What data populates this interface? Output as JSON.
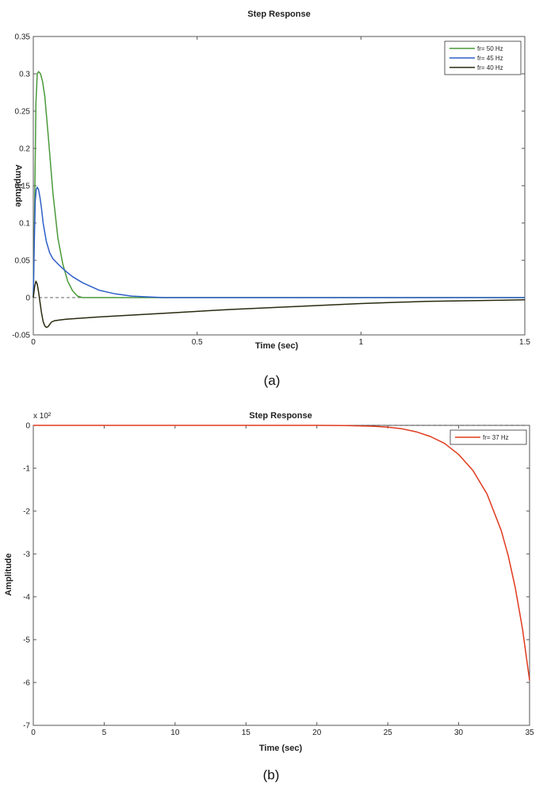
{
  "chart_data": [
    {
      "type": "line",
      "title": "Step Response",
      "xlabel": "Time (sec)",
      "ylabel": "Amplitude",
      "xlim": [
        0,
        1.5
      ],
      "ylim": [
        -0.05,
        0.35
      ],
      "xticks": [
        0,
        0.5,
        1,
        1.5
      ],
      "xtick_labels": [
        "0",
        "0.5",
        "1",
        "1.5"
      ],
      "yticks": [
        0.35,
        0.3,
        0.25,
        0.2,
        0.15,
        0.1,
        0.05,
        0,
        -0.05
      ],
      "ytick_labels": [
        "0.35",
        "0.3",
        "0.25",
        "0.2",
        "0.15",
        "0.1",
        "0.05",
        "0",
        "-0.05"
      ],
      "caption": "(a)",
      "legend_position": "top-right",
      "zero_line": true,
      "series": [
        {
          "name": "fr= 50 Hz",
          "color": "#4a9a3a",
          "x": [
            0,
            0.004,
            0.008,
            0.012,
            0.016,
            0.022,
            0.028,
            0.035,
            0.045,
            0.06,
            0.075,
            0.09,
            0.105,
            0.12,
            0.135,
            0.15,
            0.2,
            0.4,
            0.6,
            1.0,
            1.5
          ],
          "y": [
            0,
            0.12,
            0.26,
            0.3,
            0.303,
            0.3,
            0.29,
            0.27,
            0.22,
            0.14,
            0.08,
            0.045,
            0.022,
            0.009,
            0.002,
            0,
            0,
            0,
            0,
            0,
            0
          ]
        },
        {
          "name": "fr= 45 Hz",
          "color": "#2f5fc8",
          "x": [
            0,
            0.003,
            0.006,
            0.009,
            0.012,
            0.016,
            0.02,
            0.025,
            0.03,
            0.04,
            0.05,
            0.06,
            0.08,
            0.1,
            0.12,
            0.15,
            0.2,
            0.25,
            0.3,
            0.35,
            0.4,
            0.5,
            0.55,
            0.6,
            1.0,
            1.5
          ],
          "y": [
            0,
            0.07,
            0.13,
            0.145,
            0.148,
            0.145,
            0.135,
            0.12,
            0.1,
            0.075,
            0.06,
            0.052,
            0.043,
            0.035,
            0.028,
            0.02,
            0.01,
            0.005,
            0.002,
            0.001,
            0,
            0,
            0,
            0,
            0,
            0
          ]
        },
        {
          "name": "fr= 40 Hz",
          "color": "#2a2a10",
          "x": [
            0,
            0.004,
            0.008,
            0.012,
            0.016,
            0.02,
            0.025,
            0.03,
            0.035,
            0.04,
            0.045,
            0.05,
            0.055,
            0.065,
            0.08,
            0.1,
            0.2,
            0.4,
            0.6,
            0.8,
            1.0,
            1.2,
            1.5
          ],
          "y": [
            0,
            0.015,
            0.022,
            0.018,
            0.008,
            -0.005,
            -0.02,
            -0.032,
            -0.038,
            -0.04,
            -0.039,
            -0.036,
            -0.033,
            -0.031,
            -0.03,
            -0.029,
            -0.026,
            -0.021,
            -0.016,
            -0.012,
            -0.008,
            -0.005,
            -0.003
          ]
        }
      ]
    },
    {
      "type": "line",
      "title": "Step Response",
      "xlabel": "Time (sec)",
      "ylabel": "Amplitude",
      "y_exponent_label": "x 10²",
      "xlim": [
        0,
        35
      ],
      "ylim": [
        -7,
        0
      ],
      "xticks": [
        0,
        5,
        10,
        15,
        20,
        25,
        30,
        35
      ],
      "xtick_labels": [
        "0",
        "5",
        "10",
        "15",
        "20",
        "25",
        "30",
        "35"
      ],
      "yticks": [
        0,
        -1,
        -2,
        -3,
        -4,
        -5,
        -6,
        -7
      ],
      "ytick_labels": [
        "0",
        "-1",
        "-2",
        "-3",
        "-4",
        "-5",
        "-6",
        "-7"
      ],
      "caption": "(b)",
      "legend_position": "top-right",
      "zero_line": true,
      "series": [
        {
          "name": "fr= 37 Hz",
          "color": "#e03a1e",
          "x": [
            0,
            5,
            10,
            15,
            20,
            22,
            24,
            25,
            26,
            27,
            28,
            29,
            30,
            31,
            32,
            33,
            33.5,
            34,
            34.5,
            35
          ],
          "y": [
            0,
            0,
            0,
            0,
            0,
            -0.005,
            -0.02,
            -0.04,
            -0.08,
            -0.15,
            -0.26,
            -0.42,
            -0.68,
            -1.05,
            -1.6,
            -2.45,
            -3.05,
            -3.8,
            -4.75,
            -5.95
          ]
        }
      ]
    }
  ]
}
